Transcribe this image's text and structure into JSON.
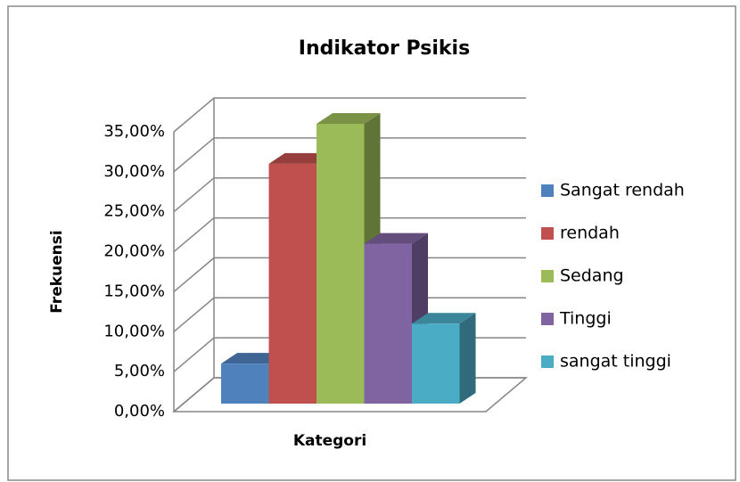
{
  "chart_data": {
    "type": "bar3d",
    "title": "Indikator Psikis",
    "x_label": "Kategori",
    "y_label": "Frekuensi",
    "series": [
      {
        "name": "Sangat rendah",
        "color": "#4f81bd",
        "values": [
          5
        ]
      },
      {
        "name": "rendah",
        "color": "#c0504d",
        "values": [
          30
        ]
      },
      {
        "name": "Sedang",
        "color": "#9bbb59",
        "values": [
          35
        ]
      },
      {
        "name": "Tinggi",
        "color": "#8064a2",
        "values": [
          20
        ]
      },
      {
        "name": "sangat tinggi",
        "color": "#4bacc6",
        "values": [
          10
        ]
      }
    ],
    "ylim": [
      0,
      35
    ],
    "yticks": [
      {
        "value": 0,
        "label": "0,00%"
      },
      {
        "value": 5,
        "label": "5,00%"
      },
      {
        "value": 10,
        "label": "10,00%"
      },
      {
        "value": 15,
        "label": "15,00%"
      },
      {
        "value": 20,
        "label": "20,00%"
      },
      {
        "value": 25,
        "label": "25,00%"
      },
      {
        "value": 30,
        "label": "30,00%"
      },
      {
        "value": 35,
        "label": "35,00%"
      }
    ],
    "grid": true,
    "legend": "right"
  }
}
